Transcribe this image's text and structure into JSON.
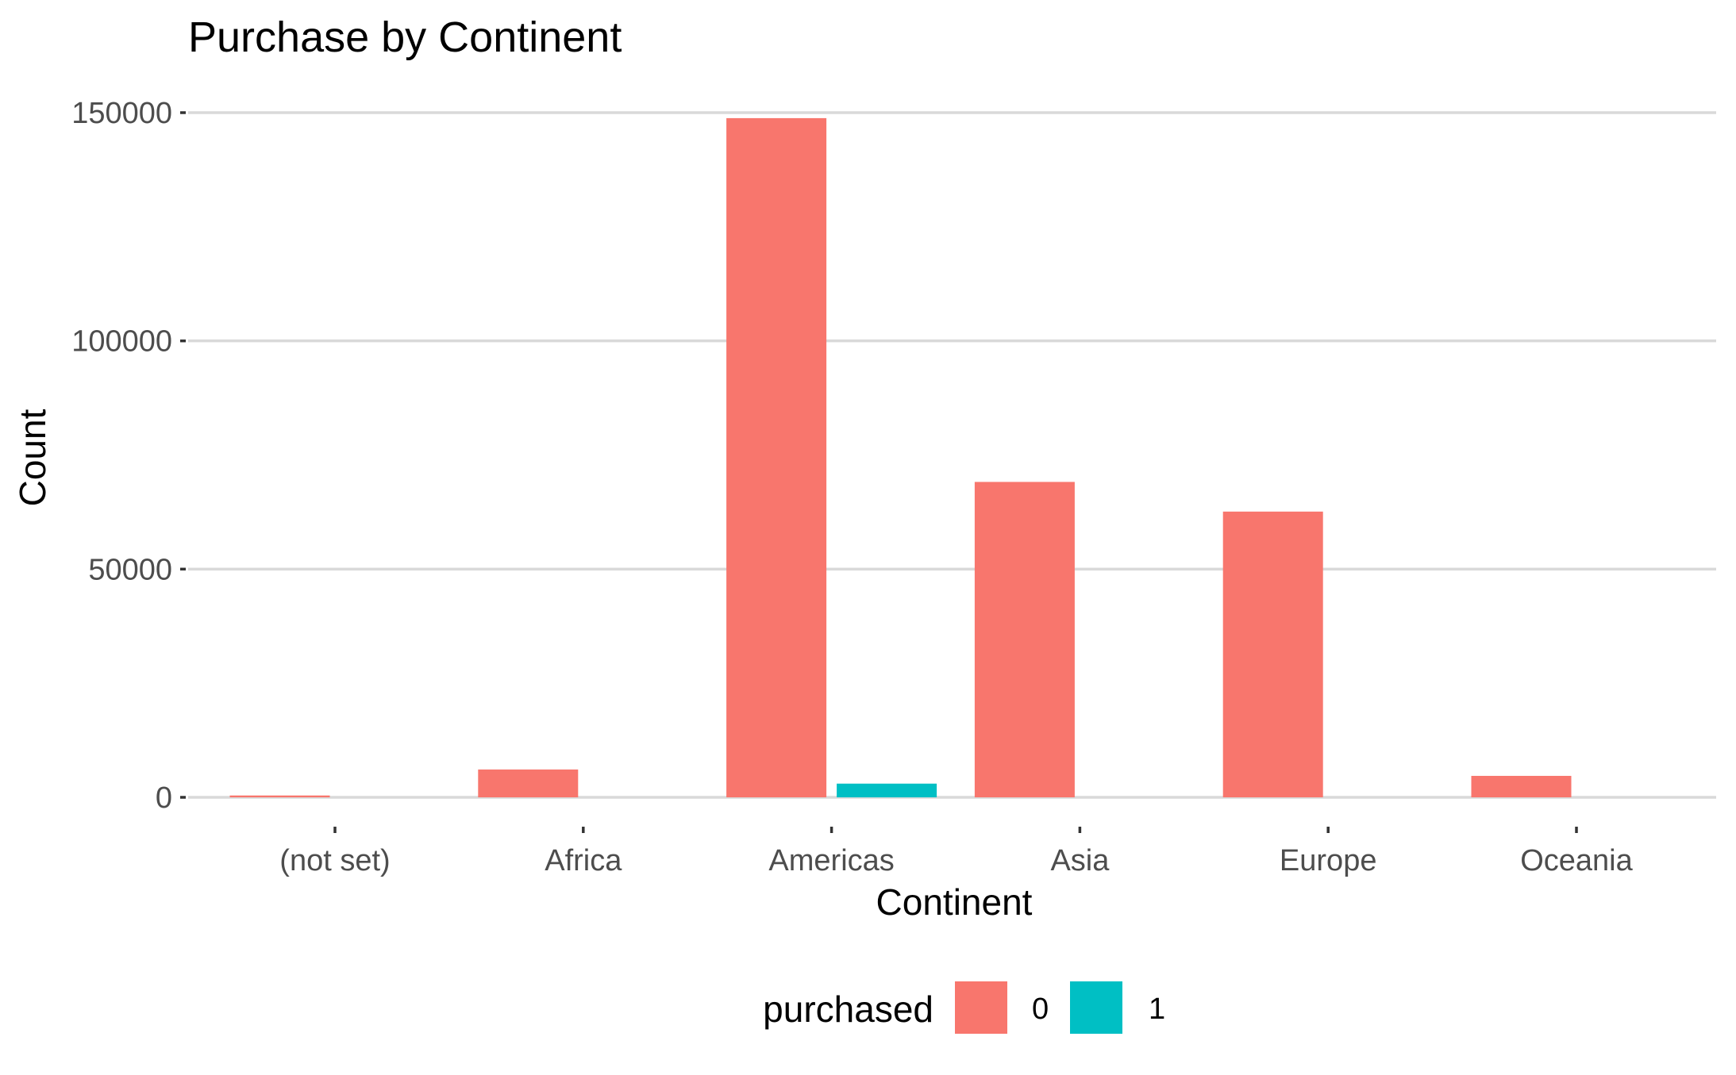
{
  "chart_data": {
    "type": "bar",
    "title": "Purchase by Continent",
    "xlabel": "Continent",
    "ylabel": "Count",
    "categories": [
      "(not set)",
      "Africa",
      "Americas",
      "Asia",
      "Europe",
      "Oceania"
    ],
    "series": [
      {
        "name": "0",
        "color": "#F8766D",
        "values": [
          400,
          6100,
          148800,
          69100,
          62600,
          4700
        ]
      },
      {
        "name": "1",
        "color": "#00BFC4",
        "values": [
          0,
          0,
          3000,
          0,
          0,
          0
        ]
      }
    ],
    "ylim": [
      0,
      150000
    ],
    "yticks": [
      0,
      50000,
      100000,
      150000
    ],
    "ytick_labels": [
      "0",
      "50000",
      "100000",
      "150000"
    ],
    "grid": true,
    "legend": {
      "title": "purchased",
      "position": "bottom"
    }
  }
}
